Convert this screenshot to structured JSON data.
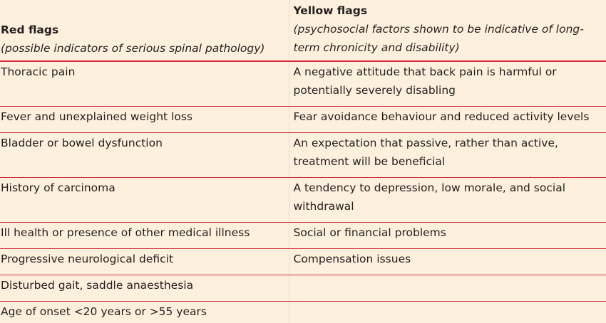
{
  "headers": {
    "red": {
      "title": "Red flags",
      "subtitle": "(possible indicators of serious spinal pathology)"
    },
    "yellow": {
      "title": "Yellow flags",
      "subtitle": "(psychosocial factors shown to be indicative of long-term chronicity and disability)"
    }
  },
  "rows": [
    {
      "red": "Thoracic pain",
      "yellow": "A negative attitude that back pain is harmful or potentially severely disabling"
    },
    {
      "red": "Fever and unexplained weight loss",
      "yellow": "Fear avoidance behaviour and reduced activity levels"
    },
    {
      "red": "Bladder or bowel dysfunction",
      "yellow": "An expectation that passive, rather than active, treatment will be beneficial"
    },
    {
      "red": "History of carcinoma",
      "yellow": "A tendency to depression, low morale, and social withdrawal"
    },
    {
      "red": "Ill health or presence of other medical illness",
      "yellow": "Social or financial problems"
    },
    {
      "red": "Progressive neurological deficit",
      "yellow": "Compensation issues"
    },
    {
      "red": "Disturbed gait, saddle anaesthesia",
      "yellow": ""
    },
    {
      "red": "Age of onset <20 years or >55 years",
      "yellow": ""
    }
  ],
  "colors": {
    "background": "#fdf0dc",
    "rule": "#d6293a",
    "text": "#231f20"
  }
}
